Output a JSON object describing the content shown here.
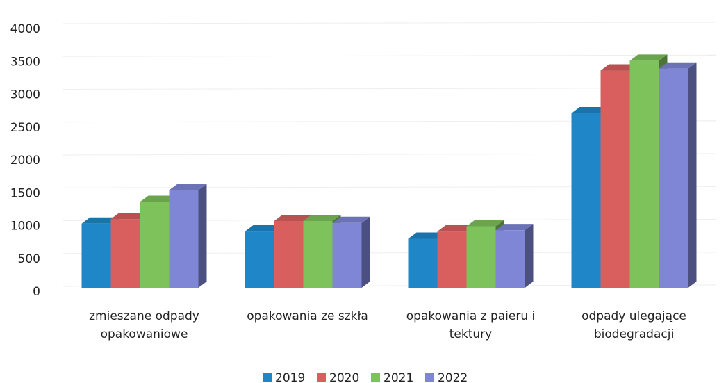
{
  "chart_data": {
    "type": "bar3d",
    "categories": [
      "zmieszane odpady opakowaniowe",
      "opakowania ze szkła",
      "opakowania z paieru i tektury",
      "odpady ulegające biodegradacji"
    ],
    "series": [
      {
        "name": "2019",
        "color": "#1f87c8",
        "values": [
          1040,
          920,
          810,
          2720
        ]
      },
      {
        "name": "2020",
        "color": "#d95f5f",
        "values": [
          1110,
          1080,
          920,
          3370
        ]
      },
      {
        "name": "2021",
        "color": "#7dc25a",
        "values": [
          1370,
          1080,
          1000,
          3520
        ]
      },
      {
        "name": "2022",
        "color": "#7f86d6",
        "values": [
          1550,
          1050,
          940,
          3400
        ]
      }
    ],
    "ylim": [
      0,
      4000
    ],
    "yticks": [
      0,
      500,
      1000,
      1500,
      2000,
      2500,
      3000,
      3500,
      4000
    ],
    "grid": true
  }
}
